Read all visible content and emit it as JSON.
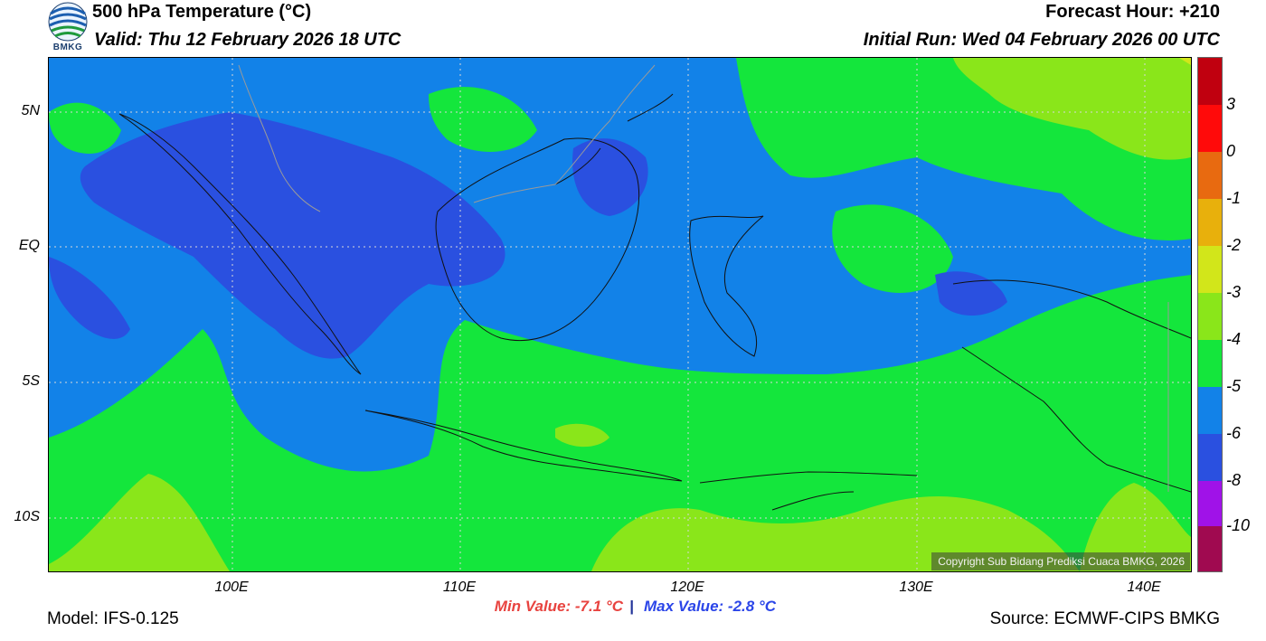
{
  "header": {
    "title": "500 hPa Temperature (°C)",
    "valid": "Valid: Thu 12 February 2026 18 UTC",
    "forecast_hour": "Forecast Hour: +210",
    "initial_run": "Initial Run: Wed 04 February 2026 00 UTC"
  },
  "logo": {
    "text": "BMKG"
  },
  "map": {
    "lat_labels": [
      "5N",
      "EQ",
      "5S",
      "10S"
    ],
    "lon_labels": [
      "100E",
      "110E",
      "120E",
      "130E",
      "140E"
    ],
    "copyright": "Copyright Sub Bidang Prediksi Cuaca BMKG, 2026"
  },
  "colorbar": {
    "labels": [
      "3",
      "0",
      "-1",
      "-2",
      "-3",
      "-4",
      "-5",
      "-6",
      "-8",
      "-10"
    ],
    "colors": [
      "#c0000f",
      "#ff0a0a",
      "#e86a10",
      "#e8b00c",
      "#d2e61a",
      "#8ae61a",
      "#14e63c",
      "#1282e8",
      "#2a50e0",
      "#a012e8",
      "#a00a50"
    ]
  },
  "stats": {
    "min": "Min Value: -7.1 °C",
    "sep": "|",
    "max": "Max Value: -2.8 °C"
  },
  "footer": {
    "model": "Model: IFS-0.125",
    "source": "Source: ECMWF-CIPS BMKG"
  },
  "palette": {
    "lightgreen": "#8ae61a",
    "green": "#14e63c",
    "blue": "#1282e8",
    "darkblue": "#2a50e0",
    "yellowgreen": "#c8e61a"
  }
}
